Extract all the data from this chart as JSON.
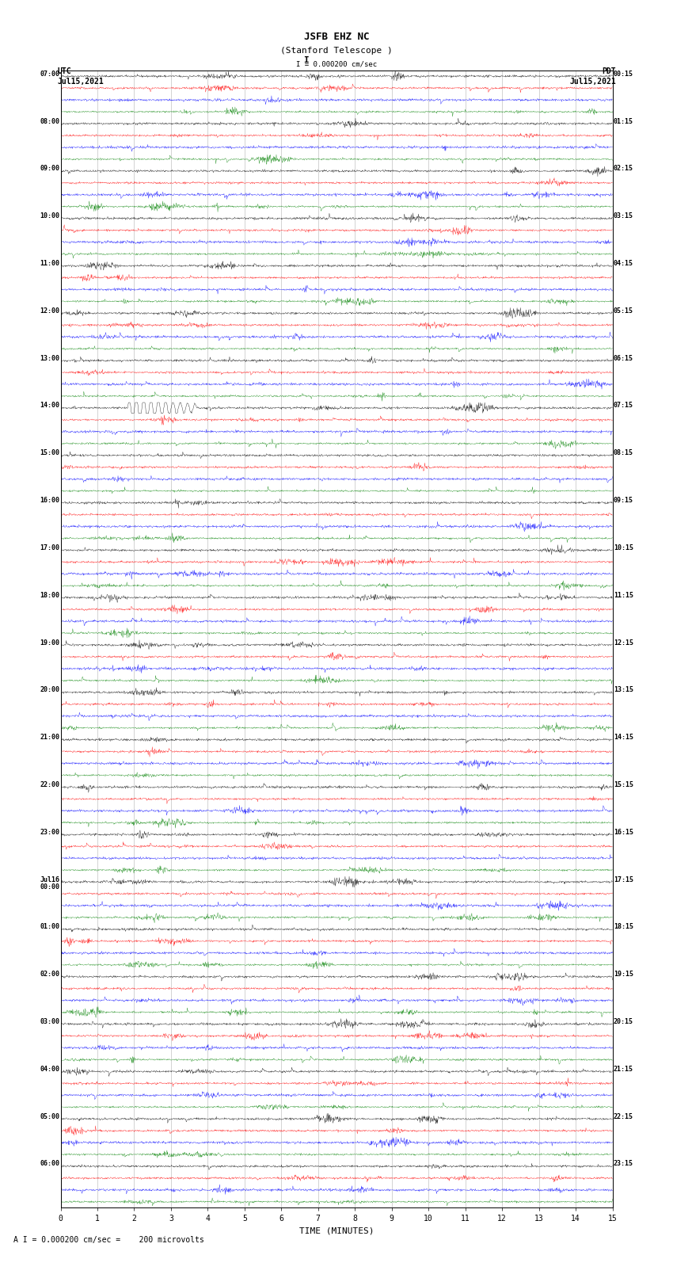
{
  "title_line1": "JSFB EHZ NC",
  "title_line2": "(Stanford Telescope )",
  "scale_label": "I = 0.000200 cm/sec",
  "footer_label": "A I = 0.000200 cm/sec =    200 microvolts",
  "left_header_line1": "UTC",
  "left_header_line2": "Jul15,2021",
  "right_header_line1": "PDT",
  "right_header_line2": "Jul15,2021",
  "xlabel": "TIME (MINUTES)",
  "left_times": [
    "07:00",
    "08:00",
    "09:00",
    "10:00",
    "11:00",
    "12:00",
    "13:00",
    "14:00",
    "15:00",
    "16:00",
    "17:00",
    "18:00",
    "19:00",
    "20:00",
    "21:00",
    "22:00",
    "23:00",
    "Jul16\n00:00",
    "01:00",
    "02:00",
    "03:00",
    "04:00",
    "05:00",
    "06:00"
  ],
  "right_times": [
    "00:15",
    "01:15",
    "02:15",
    "03:15",
    "04:15",
    "05:15",
    "06:15",
    "07:15",
    "08:15",
    "09:15",
    "10:15",
    "11:15",
    "12:15",
    "13:15",
    "14:15",
    "15:15",
    "16:15",
    "17:15",
    "18:15",
    "19:15",
    "20:15",
    "21:15",
    "22:15",
    "23:15"
  ],
  "trace_colors": [
    "black",
    "red",
    "blue",
    "green"
  ],
  "n_hour_groups": 24,
  "traces_per_group": 4,
  "total_rows": 96,
  "bg_color": "white",
  "fig_width": 8.5,
  "fig_height": 16.13,
  "dpi": 100,
  "xlim": [
    0,
    15
  ],
  "xticks": [
    0,
    1,
    2,
    3,
    4,
    5,
    6,
    7,
    8,
    9,
    10,
    11,
    12,
    13,
    14,
    15
  ],
  "large_event_group": 7,
  "large_event_color_idx": 0
}
